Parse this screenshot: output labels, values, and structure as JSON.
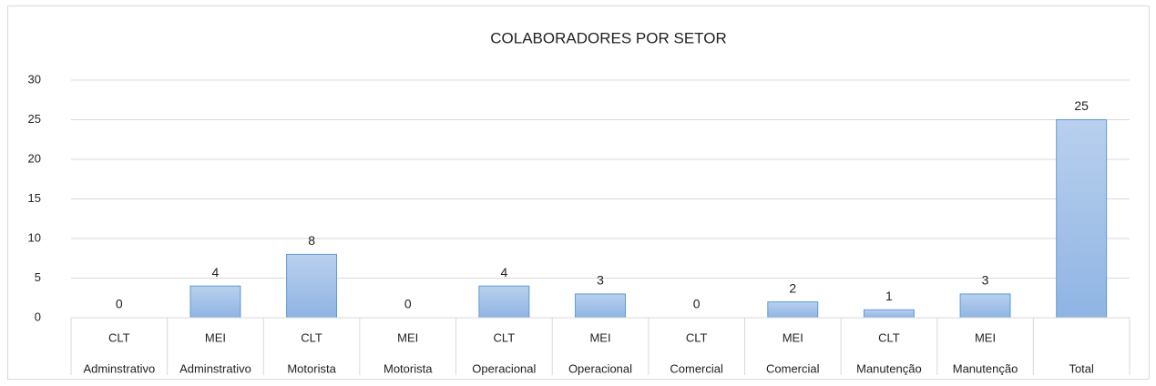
{
  "chart_data": {
    "type": "bar",
    "title": "COLABORADORES POR SETOR",
    "categories": [
      "CLT",
      "MEI",
      "CLT",
      "MEI",
      "CLT",
      "MEI",
      "CLT",
      "MEI",
      "CLT",
      "MEI",
      null
    ],
    "groups": [
      "Adminstrativo",
      "Adminstrativo",
      "Motorista",
      "Motorista",
      "Operacional",
      "Operacional",
      "Comercial",
      "Comercial",
      "Manutenção",
      "Manutenção",
      "Total"
    ],
    "values": [
      0,
      4,
      8,
      0,
      4,
      3,
      0,
      2,
      1,
      3,
      25
    ],
    "color": "#9dbde6",
    "ylim": [
      0,
      30
    ],
    "yticks": [
      0,
      5,
      10,
      15,
      20,
      25,
      30
    ],
    "grid": true
  }
}
